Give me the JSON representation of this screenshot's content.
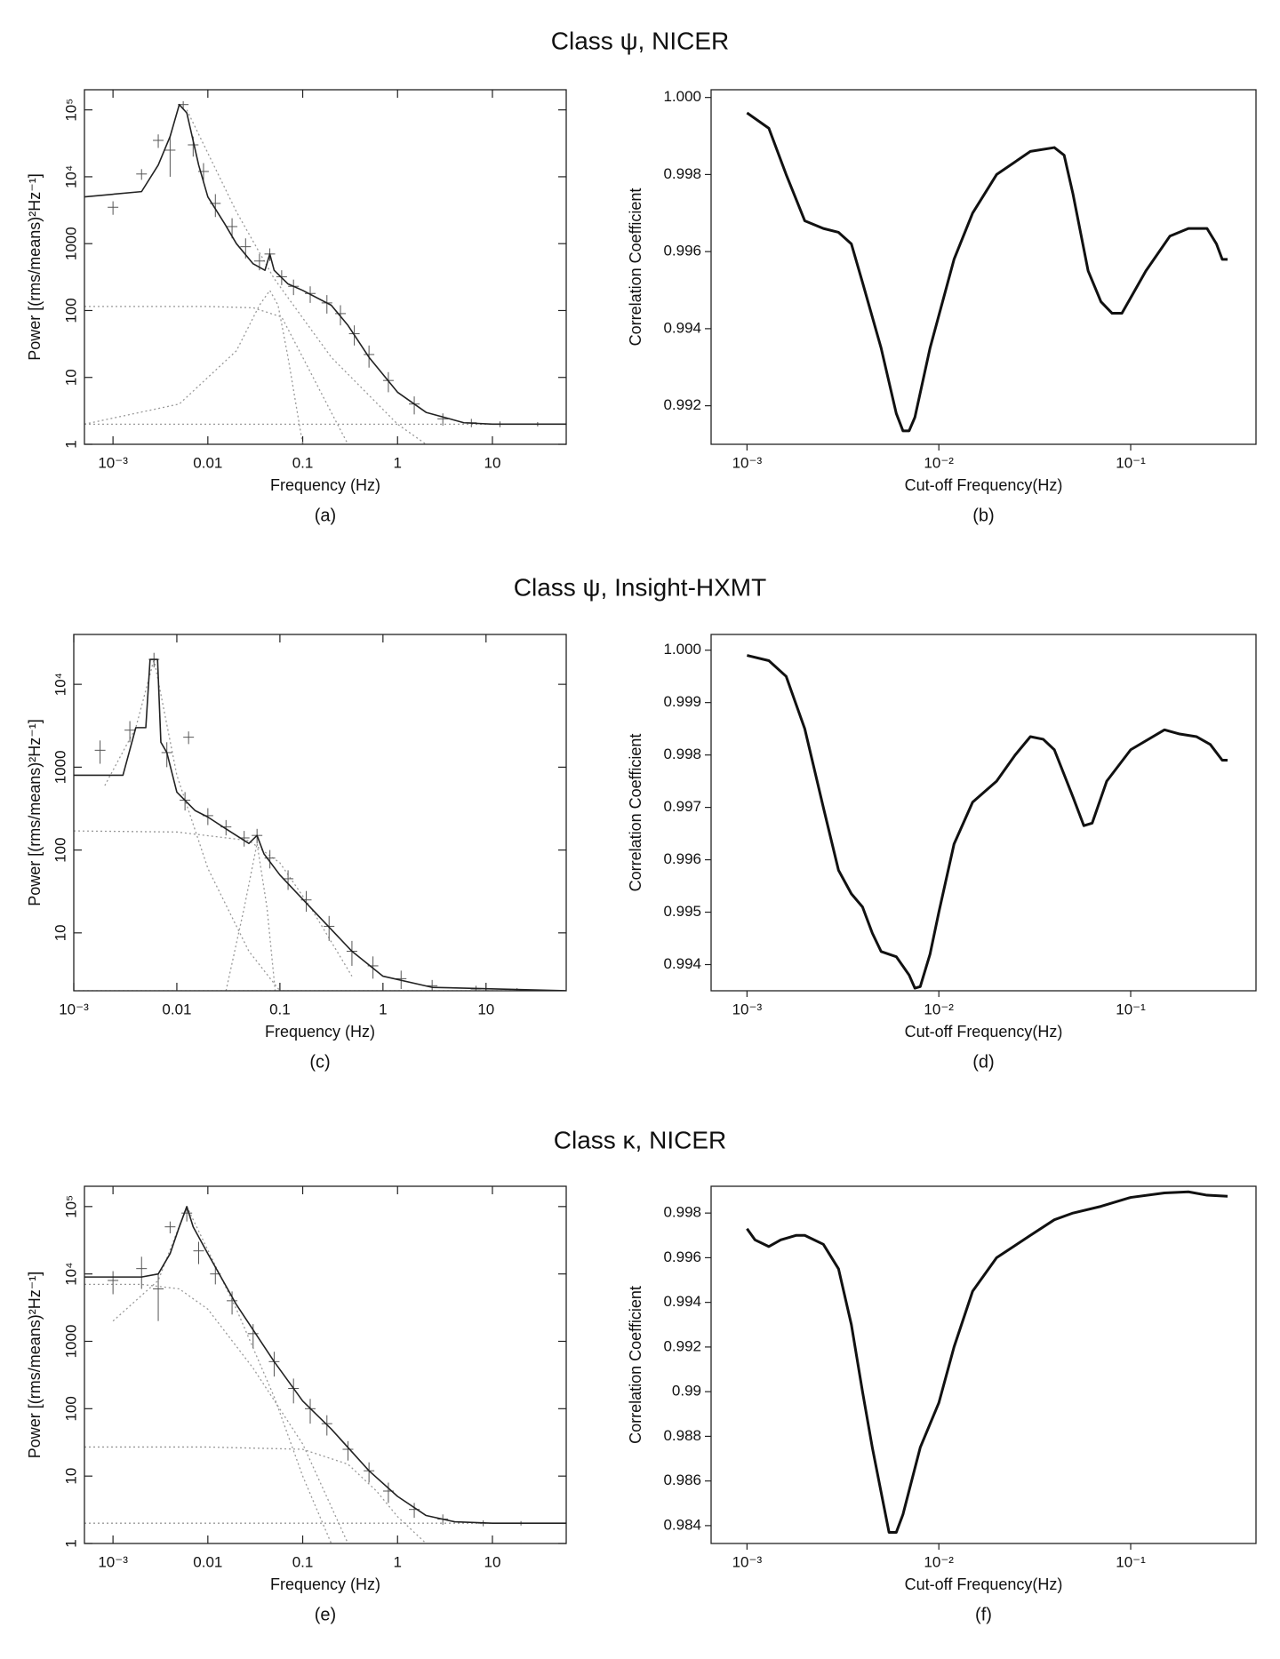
{
  "row_titles": [
    "Class ψ, NICER",
    "Class ψ, Insight-HXMT",
    "Class κ, NICER"
  ],
  "chart_data": [
    {
      "type": "errorbar",
      "xlabel": "Frequency (Hz)",
      "ylabel": "Power [(rms/means)²Hz⁻¹]",
      "caption": "(a)",
      "xscale": "log",
      "yscale": "log",
      "ticks": "in",
      "xlim": [
        0.0005,
        60
      ],
      "ylim": [
        1,
        200000
      ],
      "xticks": [
        {
          "value": 0.001,
          "label": "10⁻³"
        },
        0.01,
        0.1,
        1,
        10
      ],
      "yticks": [
        1,
        10,
        100,
        1000,
        {
          "value": 10000,
          "label": "10⁴"
        },
        {
          "value": 100000,
          "label": "10⁵"
        }
      ],
      "model": {
        "color": "#222222",
        "x": [
          0.0005,
          0.002,
          0.003,
          0.004,
          0.005,
          0.006,
          0.008,
          0.01,
          0.015,
          0.02,
          0.03,
          0.04,
          0.045,
          0.05,
          0.07,
          0.1,
          0.2,
          0.3,
          0.5,
          1,
          2,
          5,
          10,
          60
        ],
        "values": [
          5000,
          6000,
          15000,
          40000,
          120000,
          90000,
          15000,
          5000,
          2000,
          1000,
          500,
          400,
          700,
          400,
          250,
          200,
          120,
          60,
          20,
          6,
          3,
          2.1,
          2,
          2
        ]
      },
      "data": {
        "color": "#555555",
        "x": [
          0.001,
          0.002,
          0.003,
          0.004,
          0.0055,
          0.007,
          0.009,
          0.012,
          0.018,
          0.025,
          0.035,
          0.045,
          0.06,
          0.08,
          0.12,
          0.18,
          0.25,
          0.35,
          0.5,
          0.8,
          1.5,
          3,
          6,
          12,
          30
        ],
        "values": [
          3500,
          11000,
          35000,
          25000,
          120000,
          30000,
          12000,
          4000,
          1800,
          900,
          550,
          700,
          320,
          230,
          180,
          130,
          90,
          45,
          22,
          9,
          4,
          2.4,
          2.1,
          2,
          2
        ],
        "errors": [
          800,
          2000,
          8000,
          15000,
          15000,
          10000,
          4000,
          1500,
          600,
          300,
          150,
          150,
          80,
          60,
          50,
          40,
          30,
          15,
          8,
          3,
          1.2,
          0.5,
          0.3,
          0.2,
          0.15
        ]
      },
      "components": [
        {
          "color": "#999999",
          "x": [
            0.0005,
            60
          ],
          "values": [
            2,
            2
          ]
        },
        {
          "color": "#999999",
          "x": [
            0.0005,
            0.01,
            0.03,
            0.06,
            0.1,
            0.2,
            0.3
          ],
          "values": [
            115,
            115,
            110,
            80,
            20,
            3,
            1
          ]
        },
        {
          "color": "#999999",
          "x": [
            0.0005,
            0.005,
            0.02,
            0.035,
            0.045,
            0.055,
            0.07,
            0.1
          ],
          "values": [
            2,
            4,
            25,
            120,
            200,
            120,
            20,
            1
          ]
        },
        {
          "color": "#999999",
          "x": [
            0.006,
            0.02,
            0.05,
            0.2,
            1,
            2
          ],
          "values": [
            100000,
            3000,
            300,
            20,
            2,
            1
          ]
        }
      ]
    },
    {
      "type": "line",
      "xlabel": "Cut-off Frequency(Hz)",
      "ylabel": "Correlation Coefficient",
      "caption": "(b)",
      "xscale": "log",
      "yscale": "linear",
      "ticks": "out",
      "xlim": [
        0.00065,
        0.45
      ],
      "ylim": [
        0.991,
        1.0002
      ],
      "xticks": [
        {
          "value": 0.001,
          "label": "10⁻³"
        },
        {
          "value": 0.01,
          "label": "10⁻²"
        },
        {
          "value": 0.1,
          "label": "10⁻¹"
        }
      ],
      "yticks": [
        0.992,
        0.994,
        0.996,
        0.998,
        {
          "value": 1,
          "label": "1.000"
        }
      ],
      "series": [
        {
          "color": "#111111",
          "x": [
            0.001,
            0.0013,
            0.0016,
            0.002,
            0.0025,
            0.003,
            0.0035,
            0.004,
            0.005,
            0.006,
            0.0065,
            0.007,
            0.0075,
            0.009,
            0.012,
            0.015,
            0.02,
            0.03,
            0.04,
            0.045,
            0.05,
            0.06,
            0.07,
            0.08,
            0.09,
            0.12,
            0.16,
            0.2,
            0.25,
            0.28,
            0.3,
            0.32
          ],
          "values": [
            0.9996,
            0.9992,
            0.998,
            0.9968,
            0.9966,
            0.9965,
            0.9962,
            0.9952,
            0.9935,
            0.9918,
            0.99135,
            0.99135,
            0.9917,
            0.9935,
            0.9958,
            0.997,
            0.998,
            0.9986,
            0.9987,
            0.9985,
            0.9975,
            0.9955,
            0.9947,
            0.9944,
            0.9944,
            0.9955,
            0.9964,
            0.9966,
            0.9966,
            0.9962,
            0.9958,
            0.9958
          ]
        }
      ]
    },
    {
      "type": "errorbar",
      "xlabel": "Frequency (Hz)",
      "ylabel": "Power [(rms/means)²Hz⁻¹]",
      "caption": "(c)",
      "xscale": "log",
      "yscale": "log",
      "ticks": "in",
      "xlim": [
        0.001,
        60
      ],
      "ylim": [
        2,
        40000
      ],
      "xticks": [
        {
          "value": 0.001,
          "label": "10⁻³"
        },
        0.01,
        0.1,
        1,
        10
      ],
      "yticks": [
        10,
        100,
        1000,
        {
          "value": 10000,
          "label": "10⁴"
        }
      ],
      "model": {
        "color": "#222222",
        "x": [
          0.001,
          0.003,
          0.004,
          0.005,
          0.0055,
          0.0065,
          0.007,
          0.008,
          0.01,
          0.015,
          0.02,
          0.03,
          0.05,
          0.06,
          0.07,
          0.1,
          0.2,
          0.5,
          1,
          3,
          60
        ],
        "values": [
          800,
          800,
          3000,
          3000,
          20000,
          20000,
          2000,
          1500,
          500,
          300,
          250,
          180,
          120,
          150,
          90,
          50,
          20,
          6,
          3,
          2.2,
          2
        ]
      },
      "data": {
        "color": "#555555",
        "x": [
          0.0018,
          0.0035,
          0.006,
          0.008,
          0.012,
          0.013,
          0.02,
          0.03,
          0.045,
          0.06,
          0.08,
          0.12,
          0.18,
          0.3,
          0.5,
          0.8,
          1.5,
          3,
          8,
          20
        ],
        "values": [
          1600,
          2800,
          20000,
          1500,
          400,
          2300,
          260,
          190,
          140,
          150,
          80,
          45,
          25,
          12,
          6,
          4,
          2.8,
          2.3,
          2.1,
          2
        ],
        "errors": [
          500,
          800,
          4000,
          500,
          100,
          400,
          60,
          40,
          30,
          30,
          20,
          12,
          7,
          4,
          2,
          1.2,
          0.7,
          0.4,
          0.2,
          0.15
        ]
      },
      "components": [
        {
          "color": "#999999",
          "x": [
            0.001,
            60
          ],
          "values": [
            2,
            2
          ]
        },
        {
          "color": "#999999",
          "x": [
            0.001,
            0.01,
            0.05,
            0.1,
            0.2,
            0.5
          ],
          "values": [
            170,
            165,
            130,
            70,
            20,
            3
          ]
        },
        {
          "color": "#999999",
          "x": [
            0.03,
            0.045,
            0.06,
            0.075,
            0.09
          ],
          "values": [
            2,
            20,
            120,
            20,
            2
          ]
        },
        {
          "color": "#999999",
          "x": [
            0.006,
            0.01,
            0.02,
            0.05,
            0.1
          ],
          "values": [
            20000,
            800,
            60,
            6,
            2
          ]
        },
        {
          "color": "#999999",
          "x": [
            0.002,
            0.004,
            0.006
          ],
          "values": [
            600,
            3000,
            20000
          ]
        }
      ]
    },
    {
      "type": "line",
      "xlabel": "Cut-off Frequency(Hz)",
      "ylabel": "Correlation Coefficient",
      "caption": "(d)",
      "xscale": "log",
      "yscale": "linear",
      "ticks": "out",
      "xlim": [
        0.00065,
        0.45
      ],
      "ylim": [
        0.9935,
        1.0003
      ],
      "xticks": [
        {
          "value": 0.001,
          "label": "10⁻³"
        },
        {
          "value": 0.01,
          "label": "10⁻²"
        },
        {
          "value": 0.1,
          "label": "10⁻¹"
        }
      ],
      "yticks": [
        0.994,
        0.995,
        0.996,
        0.997,
        0.998,
        0.999,
        {
          "value": 1,
          "label": "1.000"
        }
      ],
      "series": [
        {
          "color": "#111111",
          "x": [
            0.001,
            0.0013,
            0.0016,
            0.002,
            0.0025,
            0.003,
            0.0035,
            0.004,
            0.0045,
            0.005,
            0.006,
            0.007,
            0.0075,
            0.008,
            0.009,
            0.01,
            0.012,
            0.015,
            0.02,
            0.025,
            0.03,
            0.035,
            0.04,
            0.05,
            0.057,
            0.063,
            0.075,
            0.1,
            0.15,
            0.18,
            0.22,
            0.26,
            0.3,
            0.32
          ],
          "values": [
            0.9999,
            0.9998,
            0.9995,
            0.9985,
            0.997,
            0.9958,
            0.99535,
            0.9951,
            0.9946,
            0.99425,
            0.99415,
            0.9938,
            0.99355,
            0.99358,
            0.9942,
            0.995,
            0.9963,
            0.9971,
            0.9975,
            0.998,
            0.99835,
            0.9983,
            0.9981,
            0.9972,
            0.99665,
            0.9967,
            0.9975,
            0.9981,
            0.99848,
            0.9984,
            0.99835,
            0.9982,
            0.9979,
            0.9979
          ]
        }
      ]
    },
    {
      "type": "errorbar",
      "xlabel": "Frequency (Hz)",
      "ylabel": "Power [(rms/means)²Hz⁻¹]",
      "caption": "(e)",
      "xscale": "log",
      "yscale": "log",
      "ticks": "in",
      "xlim": [
        0.0005,
        60
      ],
      "ylim": [
        1,
        200000
      ],
      "xticks": [
        {
          "value": 0.001,
          "label": "10⁻³"
        },
        0.01,
        0.1,
        1,
        10
      ],
      "yticks": [
        1,
        10,
        100,
        1000,
        {
          "value": 10000,
          "label": "10⁴"
        },
        {
          "value": 100000,
          "label": "10⁵"
        }
      ],
      "model": {
        "color": "#222222",
        "x": [
          0.0005,
          0.002,
          0.003,
          0.004,
          0.005,
          0.006,
          0.007,
          0.01,
          0.02,
          0.05,
          0.1,
          0.2,
          0.5,
          1,
          2,
          4,
          10,
          60
        ],
        "values": [
          9000,
          9000,
          10000,
          20000,
          50000,
          100000,
          50000,
          20000,
          3500,
          500,
          130,
          50,
          12,
          5,
          2.6,
          2.1,
          2,
          2
        ]
      },
      "data": {
        "color": "#555555",
        "x": [
          0.001,
          0.002,
          0.003,
          0.004,
          0.006,
          0.008,
          0.012,
          0.018,
          0.03,
          0.05,
          0.08,
          0.12,
          0.18,
          0.3,
          0.5,
          0.8,
          1.5,
          3,
          8,
          20
        ],
        "values": [
          8000,
          12000,
          6000,
          50000,
          80000,
          22000,
          10000,
          4000,
          1300,
          500,
          200,
          100,
          60,
          25,
          12,
          6,
          3.2,
          2.3,
          2,
          2
        ],
        "errors": [
          3000,
          6000,
          4000,
          10000,
          20000,
          8000,
          3000,
          1500,
          500,
          200,
          80,
          40,
          20,
          8,
          4,
          2,
          0.8,
          0.4,
          0.2,
          0.15
        ]
      },
      "components": [
        {
          "color": "#999999",
          "x": [
            0.0005,
            60
          ],
          "values": [
            2,
            2
          ]
        },
        {
          "color": "#999999",
          "x": [
            0.0005,
            0.01,
            0.1,
            0.3,
            0.6,
            1,
            2
          ],
          "values": [
            27,
            27,
            25,
            15,
            6,
            2.5,
            1
          ]
        },
        {
          "color": "#999999",
          "x": [
            0.0005,
            0.002,
            0.005,
            0.01,
            0.03,
            0.1,
            0.3
          ],
          "values": [
            7000,
            7000,
            6000,
            3000,
            400,
            30,
            1
          ]
        },
        {
          "color": "#999999",
          "x": [
            0.001,
            0.003,
            0.006
          ],
          "values": [
            2000,
            8000,
            100000
          ]
        },
        {
          "color": "#999999",
          "x": [
            0.006,
            0.02,
            0.05,
            0.1,
            0.2
          ],
          "values": [
            100000,
            3000,
            150,
            10,
            1
          ]
        }
      ]
    },
    {
      "type": "line",
      "xlabel": "Cut-off Frequency(Hz)",
      "ylabel": "Correlation Coefficient",
      "caption": "(f)",
      "xscale": "log",
      "yscale": "linear",
      "ticks": "out",
      "xlim": [
        0.00065,
        0.45
      ],
      "ylim": [
        0.9832,
        0.9992
      ],
      "xticks": [
        {
          "value": 0.001,
          "label": "10⁻³"
        },
        {
          "value": 0.01,
          "label": "10⁻²"
        },
        {
          "value": 0.1,
          "label": "10⁻¹"
        }
      ],
      "yticks": [
        0.984,
        0.986,
        0.988,
        0.99,
        0.992,
        0.994,
        0.996,
        0.998
      ],
      "series": [
        {
          "color": "#111111",
          "x": [
            0.001,
            0.0011,
            0.0013,
            0.0015,
            0.0018,
            0.002,
            0.0025,
            0.003,
            0.0035,
            0.004,
            0.0045,
            0.005,
            0.0055,
            0.006,
            0.0065,
            0.008,
            0.01,
            0.012,
            0.015,
            0.02,
            0.03,
            0.04,
            0.05,
            0.07,
            0.1,
            0.15,
            0.2,
            0.25,
            0.32
          ],
          "values": [
            0.9973,
            0.9968,
            0.9965,
            0.9968,
            0.997,
            0.997,
            0.9966,
            0.9955,
            0.993,
            0.99,
            0.9875,
            0.9855,
            0.9837,
            0.9837,
            0.9845,
            0.9875,
            0.9895,
            0.992,
            0.9945,
            0.996,
            0.997,
            0.9977,
            0.998,
            0.9983,
            0.9987,
            0.9989,
            0.99895,
            0.9988,
            0.99875
          ]
        }
      ]
    }
  ]
}
